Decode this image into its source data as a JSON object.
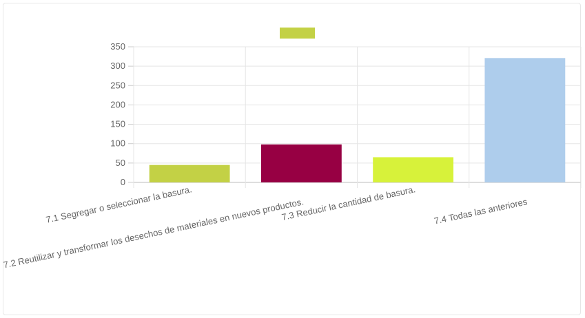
{
  "chart_data": {
    "type": "bar",
    "title": "",
    "xlabel": "",
    "ylabel": "",
    "categories": [
      "7.1 Segregar o seleccionar la basura.",
      "7.2 Reutilizar y transformar los desechos de materiales en nuevos productos.",
      "7.3 Reducir la cantidad de basura.",
      "7.4 Todas las anteriores"
    ],
    "series": [
      {
        "values": [
          45,
          98,
          65,
          321
        ]
      }
    ],
    "bar_colors": [
      "#c3d145",
      "#970043",
      "#d7f23a",
      "#aecdec"
    ],
    "legend": {
      "position": "top",
      "swatch_color": "#c3d145"
    },
    "ylim": [
      0,
      350
    ],
    "yticks": [
      0,
      50,
      100,
      150,
      200,
      250,
      300,
      350
    ],
    "grid": true
  }
}
